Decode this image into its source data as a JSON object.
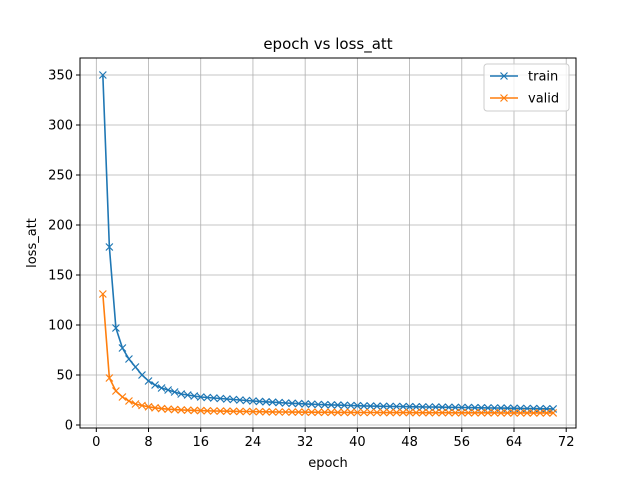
{
  "chart_data": {
    "type": "line",
    "title": "epoch vs loss_att",
    "xlabel": "epoch",
    "ylabel": "loss_att",
    "xlim": [
      -2.5,
      73.5
    ],
    "ylim": [
      -3,
      367
    ],
    "xticks": [
      0,
      8,
      16,
      24,
      32,
      40,
      48,
      56,
      64,
      72
    ],
    "yticks": [
      0,
      50,
      100,
      150,
      200,
      250,
      300,
      350
    ],
    "grid": true,
    "legend_position": "top-right",
    "marker": "x",
    "x": [
      1,
      2,
      3,
      4,
      5,
      6,
      7,
      8,
      9,
      10,
      11,
      12,
      13,
      14,
      15,
      16,
      17,
      18,
      19,
      20,
      21,
      22,
      23,
      24,
      25,
      26,
      27,
      28,
      29,
      30,
      31,
      32,
      33,
      34,
      35,
      36,
      37,
      38,
      39,
      40,
      41,
      42,
      43,
      44,
      45,
      46,
      47,
      48,
      49,
      50,
      51,
      52,
      53,
      54,
      55,
      56,
      57,
      58,
      59,
      60,
      61,
      62,
      63,
      64,
      65,
      66,
      67,
      68,
      69,
      70
    ],
    "series": [
      {
        "name": "train",
        "color": "#1f77b4",
        "values": [
          350,
          178,
          97,
          77,
          66,
          58,
          50,
          44,
          40,
          37,
          35,
          33,
          31,
          30,
          29,
          28,
          27.5,
          27,
          26.5,
          26,
          25.5,
          25,
          24.5,
          24,
          23.6,
          23.2,
          22.8,
          22.4,
          22,
          21.7,
          21.4,
          21.1,
          20.8,
          20.5,
          20.3,
          20.1,
          19.9,
          19.7,
          19.5,
          19.3,
          19.1,
          18.9,
          18.8,
          18.7,
          18.6,
          18.5,
          18.4,
          18.3,
          18.2,
          18.1,
          18,
          17.9,
          17.8,
          17.7,
          17.6,
          17.5,
          17.4,
          17.3,
          17.2,
          17.1,
          17,
          16.9,
          16.8,
          16.7,
          16.6,
          16.5,
          16.4,
          16.3,
          16.2,
          16.1
        ]
      },
      {
        "name": "valid",
        "color": "#ff7f0e",
        "values": [
          131,
          47,
          34,
          28,
          24,
          21,
          19.5,
          18.2,
          17.2,
          16.4,
          15.8,
          15.4,
          15.1,
          14.8,
          14.6,
          14.4,
          14.2,
          14,
          13.9,
          13.8,
          13.7,
          13.6,
          13.5,
          13.4,
          13.3,
          13.2,
          13.1,
          13,
          13,
          12.9,
          12.9,
          12.8,
          12.8,
          12.7,
          12.7,
          12.7,
          12.6,
          12.6,
          12.6,
          12.5,
          12.5,
          12.5,
          12.5,
          12.4,
          12.4,
          12.4,
          12.4,
          12.4,
          12.3,
          12.3,
          12.3,
          12.3,
          12.3,
          12.3,
          12.2,
          12.2,
          12.2,
          12.2,
          12.2,
          12.2,
          12.2,
          12.1,
          12.1,
          12.1,
          12.1,
          12.1,
          12.1,
          12.1,
          12.1,
          12.1
        ]
      }
    ]
  }
}
